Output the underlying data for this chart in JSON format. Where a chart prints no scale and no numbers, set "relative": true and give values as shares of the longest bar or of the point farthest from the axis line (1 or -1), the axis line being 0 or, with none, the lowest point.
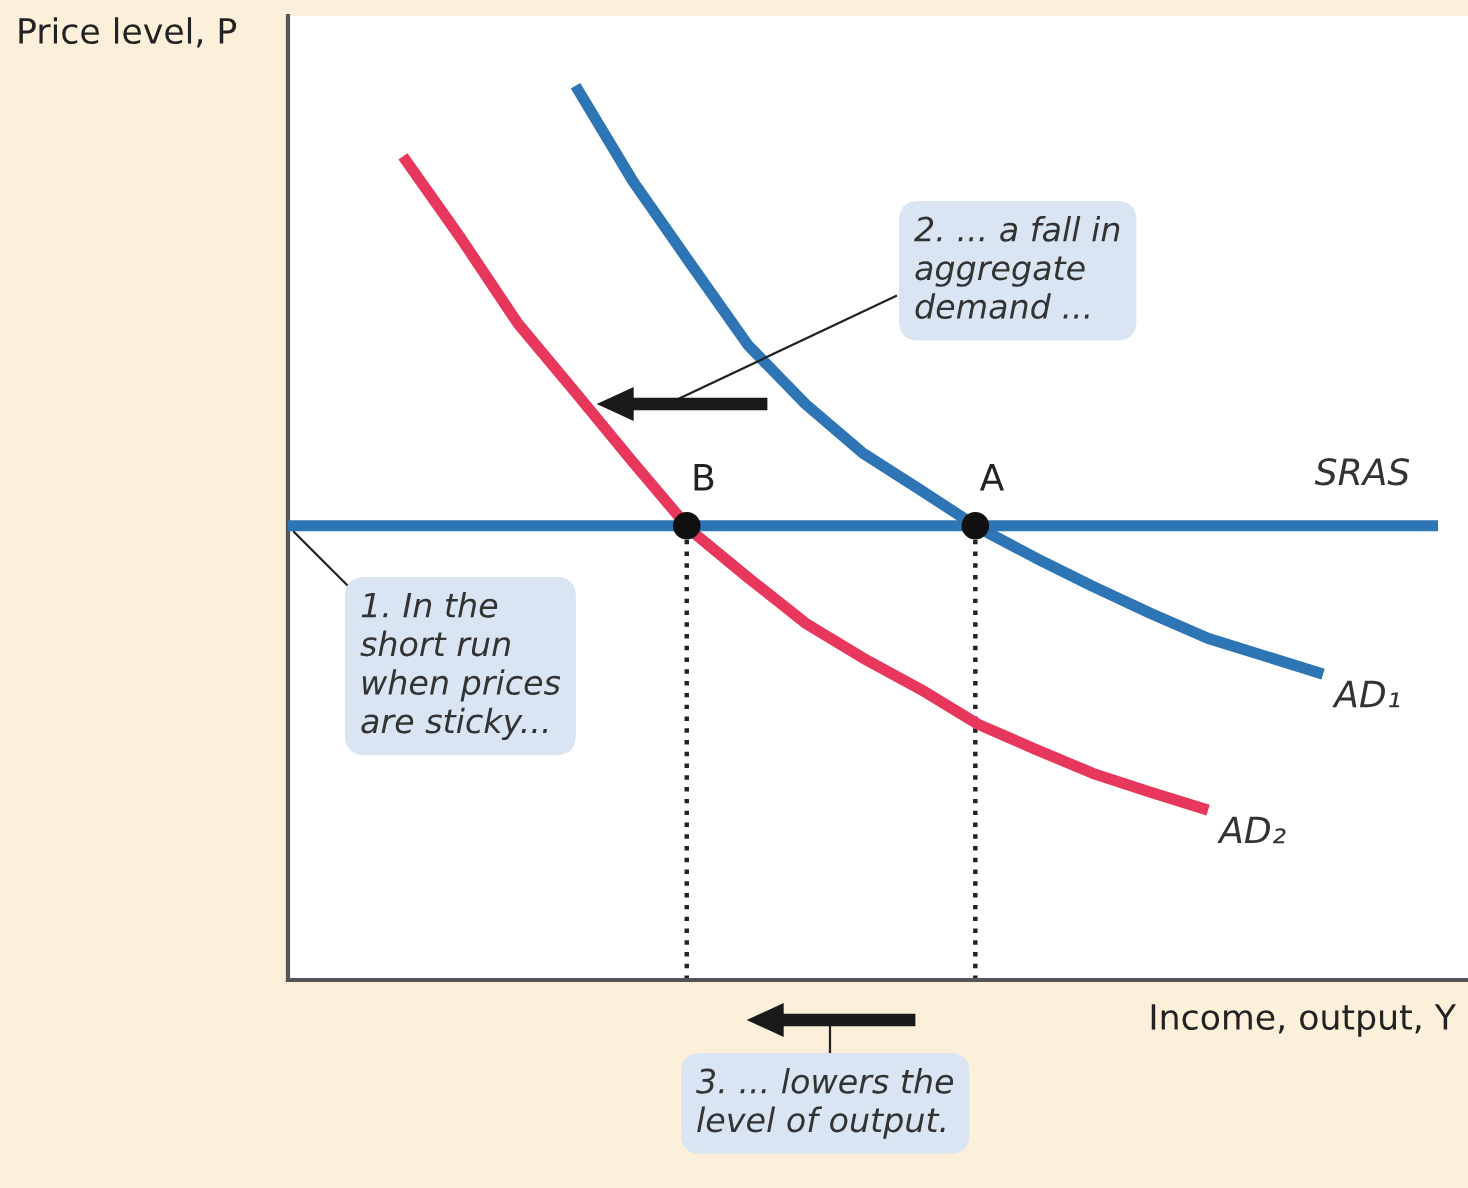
{
  "chart_data": {
    "type": "line",
    "relative": true,
    "xlabel": "Income, output, Y",
    "ylabel": "Price level, P",
    "legend": false,
    "categories": [
      null,
      null,
      null,
      null,
      null,
      null,
      null,
      null,
      null,
      null,
      null,
      null,
      null,
      null,
      null,
      null,
      null,
      null,
      null,
      null,
      null
    ],
    "series": [
      {
        "name": "AD₁",
        "color": "#2e75b6",
        "values": [
          null,
          null,
          null,
          null,
          null,
          1,
          0.893,
          0.801,
          0.71,
          0.644,
          0.589,
          0.548,
          0.506,
          0.472,
          0.44,
          0.41,
          0.382,
          0.362,
          0.342,
          null,
          null
        ]
      },
      {
        "name": "AD₂",
        "color": "#e8375d",
        "values": [
          null,
          null,
          0.921,
          0.83,
          0.734,
          0.657,
          0.579,
          0.503,
          0.45,
          0.399,
          0.36,
          0.325,
          0.286,
          0.258,
          0.231,
          0.21,
          0.19,
          null,
          null,
          null,
          null
        ]
      },
      {
        "name": "SRAS",
        "color": "#2e75b6",
        "values": [
          0.508,
          0.508,
          0.508,
          0.508,
          0.508,
          0.508,
          0.508,
          0.508,
          0.508,
          0.508,
          0.508,
          0.508,
          0.508,
          0.508,
          0.508,
          0.508,
          0.508,
          0.508,
          0.508,
          0.508,
          0.508
        ]
      }
    ],
    "annotations": [
      "B",
      "A",
      "1. In the\nshort run\nwhen prices\nare sticky...",
      "2. ... a fall in\naggregate\ndemand ...",
      "3. ... lowers the\nlevel of output."
    ]
  }
}
